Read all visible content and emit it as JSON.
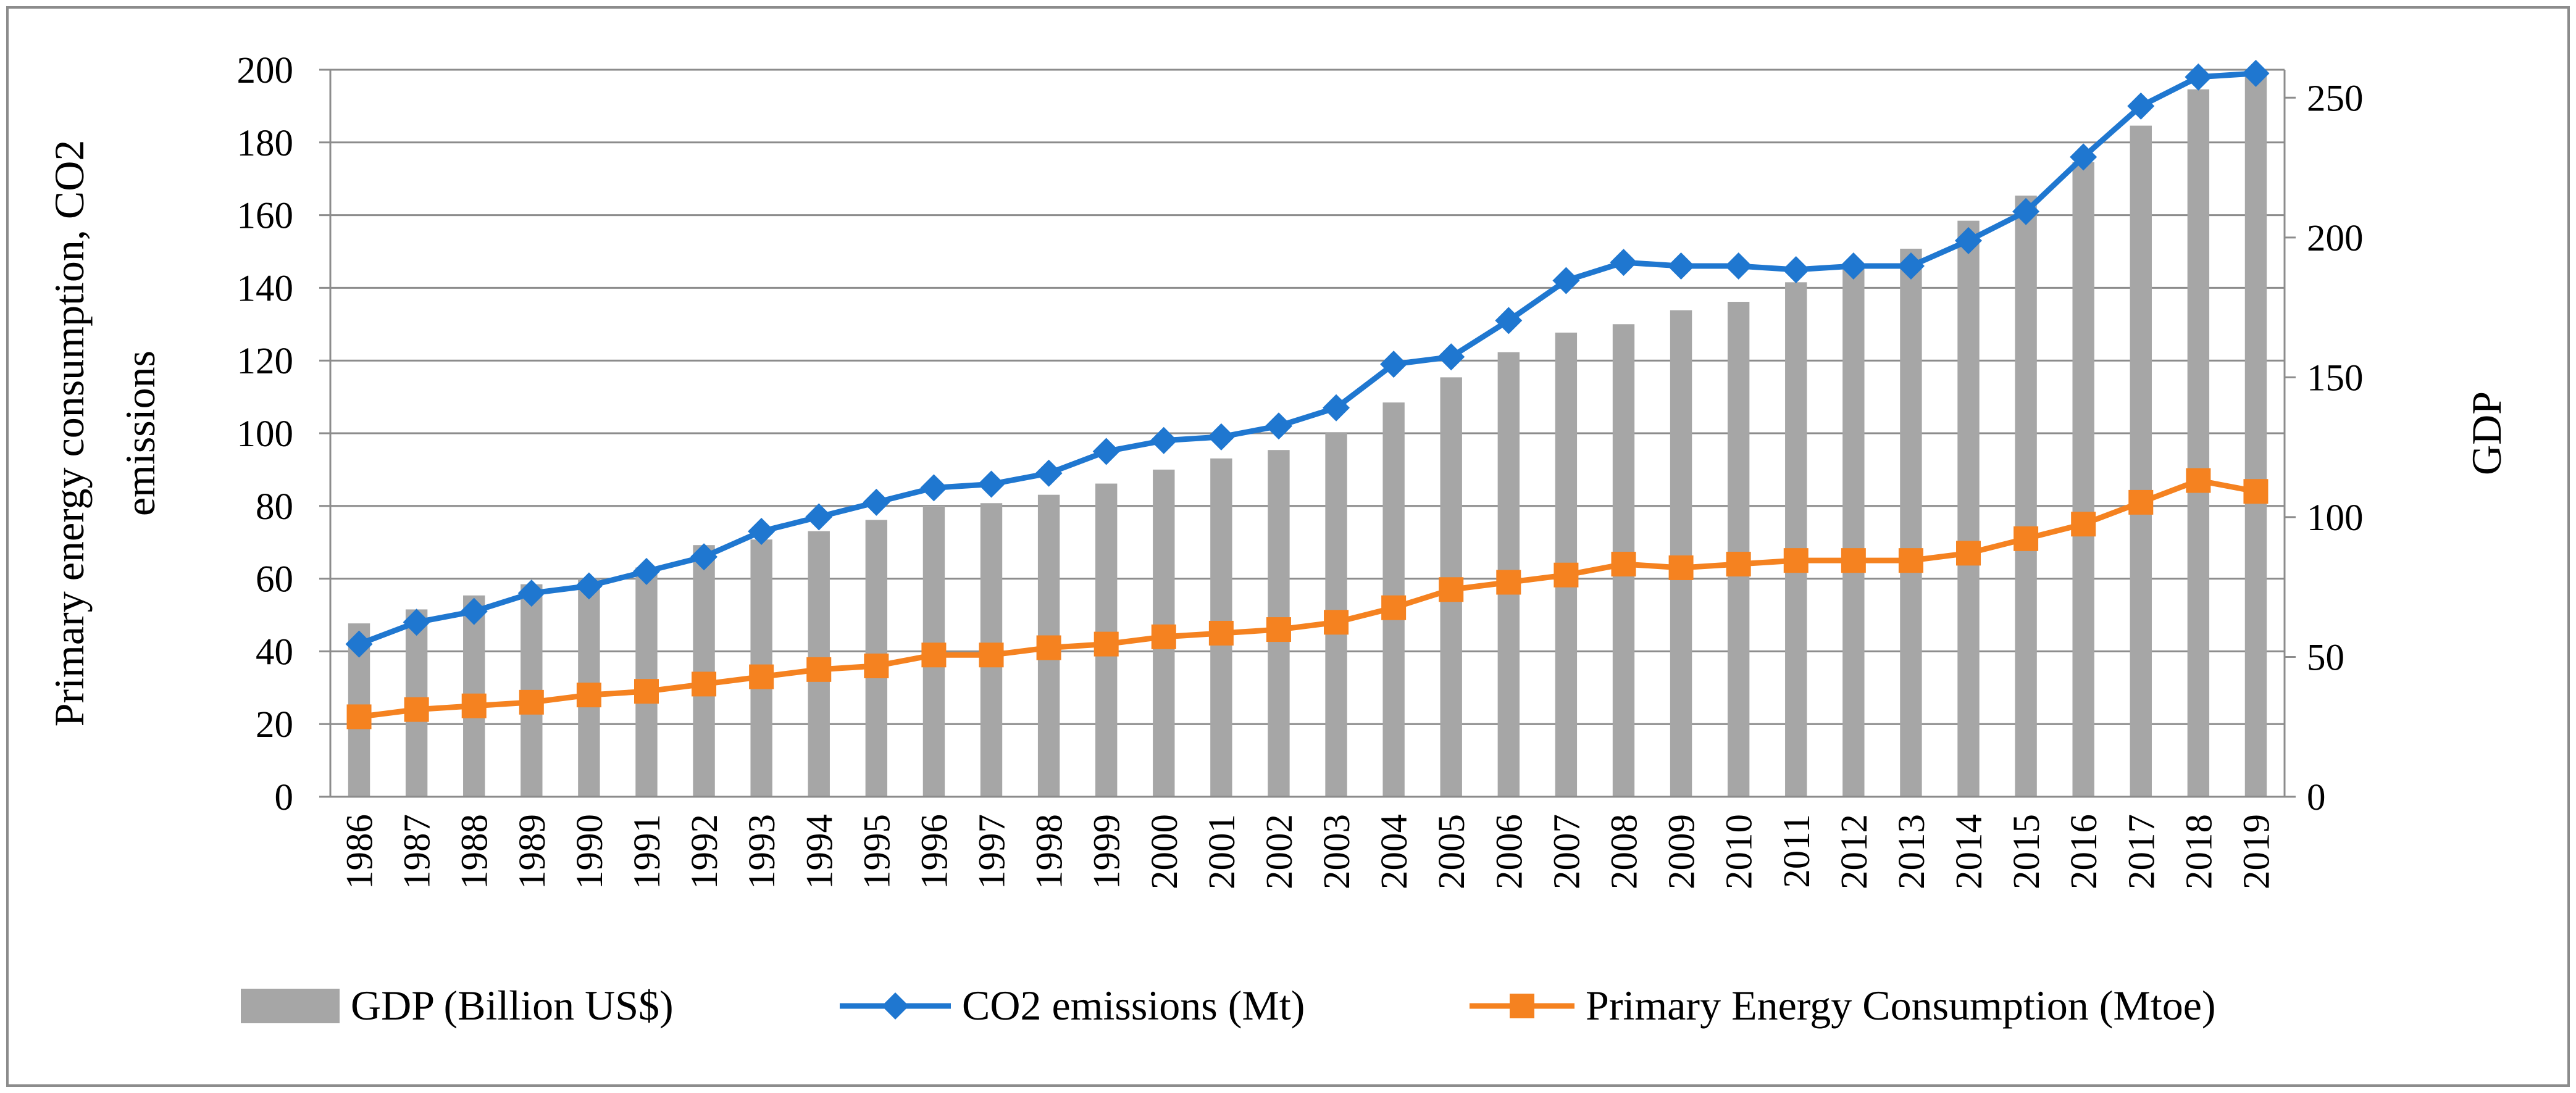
{
  "chart_data": {
    "type": "bar+line",
    "categories": [
      "1986",
      "1987",
      "1988",
      "1989",
      "1990",
      "1991",
      "1992",
      "1993",
      "1994",
      "1995",
      "1996",
      "1997",
      "1998",
      "1999",
      "2000",
      "2001",
      "2002",
      "2003",
      "2004",
      "2005",
      "2006",
      "2007",
      "2008",
      "2009",
      "2010",
      "2011",
      "2012",
      "2013",
      "2014",
      "2015",
      "2016",
      "2017",
      "2018",
      "2019"
    ],
    "series": [
      {
        "name": "GDP (Billion US$)",
        "type": "bar",
        "axis": "right",
        "color": "#A6A6A6",
        "values": [
          62,
          67,
          72,
          76,
          78,
          82,
          90,
          92,
          95,
          99,
          104,
          105,
          108,
          112,
          117,
          121,
          124,
          130,
          141,
          150,
          159,
          166,
          169,
          174,
          177,
          184,
          189,
          196,
          206,
          215,
          227,
          240,
          253,
          258
        ]
      },
      {
        "name": "CO2 emissions (Mt)",
        "type": "line",
        "marker": "diamond",
        "axis": "left",
        "color": "#1F77D0",
        "values": [
          42,
          48,
          51,
          56,
          58,
          62,
          66,
          73,
          77,
          81,
          85,
          86,
          89,
          95,
          98,
          99,
          102,
          107,
          119,
          121,
          131,
          142,
          147,
          146,
          146,
          145,
          146,
          146,
          153,
          161,
          176,
          190,
          198,
          199
        ]
      },
      {
        "name": "Primary Energy Consumption (Mtoe)",
        "type": "line",
        "marker": "square",
        "axis": "left",
        "color": "#F58220",
        "values": [
          22,
          24,
          25,
          26,
          28,
          29,
          31,
          33,
          35,
          36,
          39,
          39,
          41,
          42,
          44,
          45,
          46,
          48,
          52,
          57,
          59,
          61,
          64,
          63,
          64,
          65,
          65,
          65,
          67,
          71,
          75,
          81,
          87,
          84
        ]
      }
    ],
    "y_left": {
      "label": "Primary energy consumption, CO2 emissions",
      "ylim": [
        0,
        200
      ],
      "ticks": [
        "0",
        "20",
        "40",
        "60",
        "80",
        "100",
        "120",
        "140",
        "160",
        "180",
        "200"
      ]
    },
    "y_right": {
      "label": "GDP",
      "ylim": [
        0,
        260
      ],
      "ticks": [
        "0",
        "50",
        "100",
        "150",
        "200",
        "250"
      ]
    },
    "legend": [
      "GDP (Billion US$)",
      "CO2 emissions (Mt)",
      "Primary Energy Consumption (Mtoe)"
    ],
    "legend_position": "bottom",
    "grid": true
  }
}
